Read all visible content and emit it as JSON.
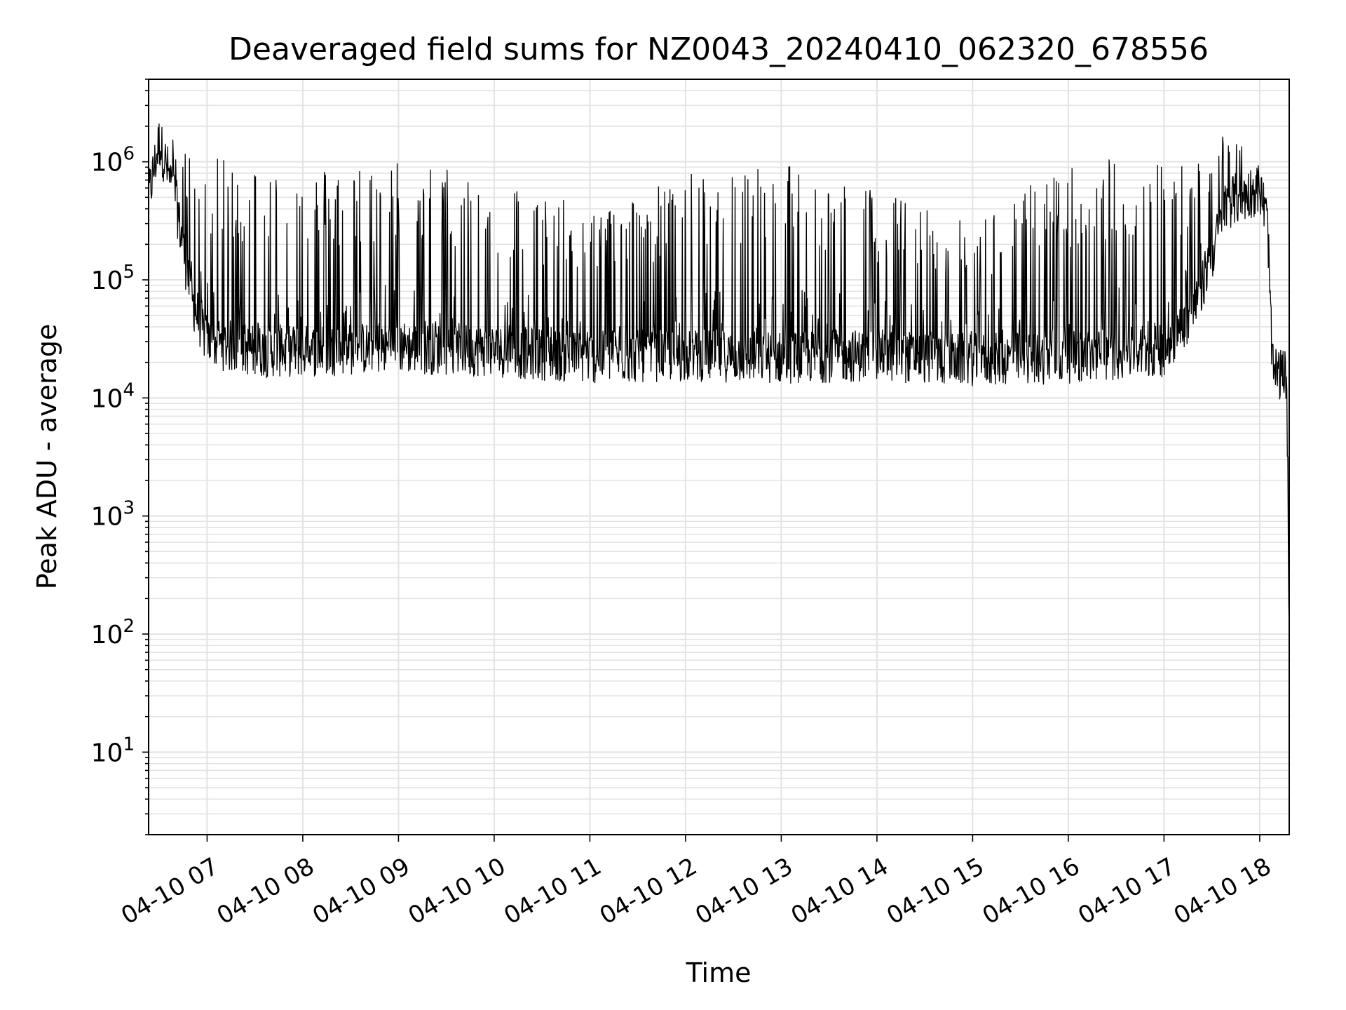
{
  "chart_data": {
    "type": "line",
    "title": "Deaveraged field sums for NZ0043_20240410_062320_678556",
    "xlabel": "Time",
    "ylabel": "Peak ADU - average",
    "yscale": "log",
    "ylim": [
      2,
      5000000
    ],
    "xlim": [
      "2024-04-10 06:23:20",
      "2024-04-10 18:18:30"
    ],
    "x_ticks": [
      {
        "time": "2024-04-10 07:00",
        "label": "04-10 07"
      },
      {
        "time": "2024-04-10 08:00",
        "label": "04-10 08"
      },
      {
        "time": "2024-04-10 09:00",
        "label": "04-10 09"
      },
      {
        "time": "2024-04-10 10:00",
        "label": "04-10 10"
      },
      {
        "time": "2024-04-10 11:00",
        "label": "04-10 11"
      },
      {
        "time": "2024-04-10 12:00",
        "label": "04-10 12"
      },
      {
        "time": "2024-04-10 13:00",
        "label": "04-10 13"
      },
      {
        "time": "2024-04-10 14:00",
        "label": "04-10 14"
      },
      {
        "time": "2024-04-10 15:00",
        "label": "04-10 15"
      },
      {
        "time": "2024-04-10 16:00",
        "label": "04-10 16"
      },
      {
        "time": "2024-04-10 17:00",
        "label": "04-10 17"
      },
      {
        "time": "2024-04-10 18:00",
        "label": "04-10 18"
      }
    ],
    "y_ticks": [
      {
        "value": 10,
        "base": "10",
        "exp": "1"
      },
      {
        "value": 100,
        "base": "10",
        "exp": "2"
      },
      {
        "value": 1000,
        "base": "10",
        "exp": "3"
      },
      {
        "value": 10000,
        "base": "10",
        "exp": "4"
      },
      {
        "value": 100000,
        "base": "10",
        "exp": "5"
      },
      {
        "value": 1000000,
        "base": "10",
        "exp": "6"
      }
    ],
    "grid": true,
    "line_color": "#000000",
    "grid_color": "#e3e3e3",
    "series": [
      {
        "envelope": [
          {
            "time": "2024-04-10 06:23:20",
            "base": 500000,
            "peak": 700000
          },
          {
            "time": "2024-04-10 06:30",
            "base": 1500000,
            "peak": 2200000
          },
          {
            "time": "2024-04-10 06:40",
            "base": 500000,
            "peak": 1500000
          },
          {
            "time": "2024-04-10 06:50",
            "base": 70000,
            "peak": 1200000
          },
          {
            "time": "2024-04-10 07:00",
            "base": 30000,
            "peak": 1100000
          },
          {
            "time": "2024-04-10 07:30",
            "base": 25000,
            "peak": 1000000
          },
          {
            "time": "2024-04-10 08:00",
            "base": 25000,
            "peak": 900000
          },
          {
            "time": "2024-04-10 09:00",
            "base": 27000,
            "peak": 1100000
          },
          {
            "time": "2024-04-10 10:00",
            "base": 25000,
            "peak": 800000
          },
          {
            "time": "2024-04-10 11:00",
            "base": 22000,
            "peak": 400000
          },
          {
            "time": "2024-04-10 12:00",
            "base": 23000,
            "peak": 800000
          },
          {
            "time": "2024-04-10 13:00",
            "base": 22000,
            "peak": 1100000
          },
          {
            "time": "2024-04-10 14:00",
            "base": 23000,
            "peak": 600000
          },
          {
            "time": "2024-04-10 15:00",
            "base": 21000,
            "peak": 300000
          },
          {
            "time": "2024-04-10 16:00",
            "base": 22000,
            "peak": 1100000
          },
          {
            "time": "2024-04-10 17:00",
            "base": 25000,
            "peak": 1100000
          },
          {
            "time": "2024-04-10 17:20",
            "base": 60000,
            "peak": 1000000
          },
          {
            "time": "2024-04-10 17:40",
            "base": 450000,
            "peak": 2600000
          },
          {
            "time": "2024-04-10 18:00",
            "base": 600000,
            "peak": 800000
          },
          {
            "time": "2024-04-10 18:05",
            "base": 300000,
            "peak": 350000
          },
          {
            "time": "2024-04-10 18:08",
            "base": 17000,
            "peak": 19000
          },
          {
            "time": "2024-04-10 18:17",
            "base": 15000,
            "peak": 17000
          },
          {
            "time": "2024-04-10 18:18:30",
            "base": 100,
            "peak": 120
          }
        ],
        "min_dips": 9000
      }
    ]
  }
}
